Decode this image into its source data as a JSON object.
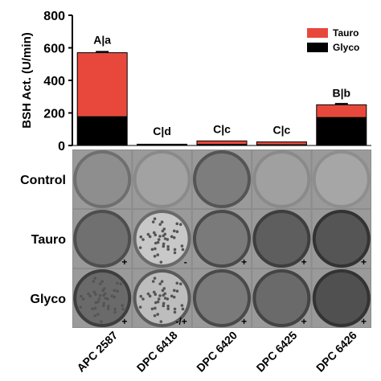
{
  "chart_data": {
    "type": "bar",
    "stacked": true,
    "ylabel": "BSH Act. (U/min)",
    "ylim": [
      0,
      800
    ],
    "yticks": [
      0,
      200,
      400,
      600,
      800
    ],
    "categories": [
      "APC 2587",
      "DPC 6418",
      "DPC 6420",
      "DPC 6425",
      "DPC 6426"
    ],
    "series": [
      {
        "name": "Glyco",
        "color": "#000000",
        "values": [
          180,
          5,
          10,
          8,
          175
        ]
      },
      {
        "name": "Tauro",
        "color": "#e8483c",
        "values": [
          390,
          3,
          18,
          14,
          75
        ]
      }
    ],
    "error": [
      6,
      0,
      0,
      0,
      6
    ],
    "bar_labels": [
      "A|a",
      "C|d",
      "C|c",
      "C|c",
      "B|b"
    ],
    "legend_position": "top-right"
  },
  "plate_grid": {
    "rows": [
      {
        "label": "Control",
        "signs": [
          "",
          "",
          "",
          "",
          ""
        ]
      },
      {
        "label": "Tauro",
        "signs": [
          "+",
          "-",
          "+",
          "+",
          "+"
        ]
      },
      {
        "label": "Glyco",
        "signs": [
          "+",
          "-/+",
          "+",
          "+",
          "+"
        ]
      }
    ]
  },
  "colors": {
    "tauro": "#e8483c",
    "glyco": "#000000",
    "panel_bg": "#8a8a8a"
  }
}
